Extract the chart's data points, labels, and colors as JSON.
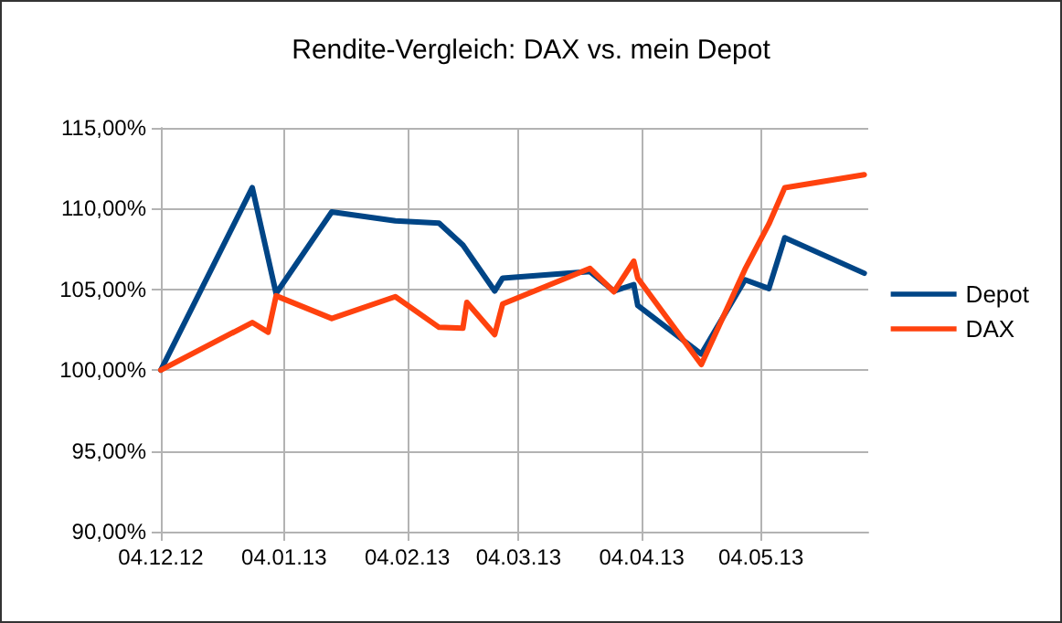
{
  "chart_data": {
    "type": "line",
    "title": "Rendite-Vergleich: DAX vs. mein Depot",
    "series": [
      {
        "name": "Depot",
        "color": "#004586",
        "x": [
          "2012-12-04",
          "2012-12-27",
          "2013-01-02",
          "2013-01-16",
          "2013-02-01",
          "2013-02-12",
          "2013-02-18",
          "2013-02-26",
          "2013-02-28",
          "2013-03-22",
          "2013-03-28",
          "2013-04-02",
          "2013-04-03",
          "2013-04-19",
          "2013-04-30",
          "2013-05-06",
          "2013-05-10",
          "2013-05-30"
        ],
        "values": [
          100,
          111.3,
          104.75,
          109.8,
          109.25,
          109.1,
          107.75,
          104.9,
          105.7,
          106.1,
          104.9,
          105.3,
          104.0,
          101.0,
          105.6,
          105.05,
          108.2,
          106.0
        ]
      },
      {
        "name": "DAX",
        "color": "#ff420e",
        "x": [
          "2012-12-04",
          "2012-12-27",
          "2012-12-31",
          "2013-01-02",
          "2013-01-16",
          "2013-02-01",
          "2013-02-12",
          "2013-02-18",
          "2013-02-19",
          "2013-02-26",
          "2013-02-28",
          "2013-03-22",
          "2013-03-28",
          "2013-04-02",
          "2013-04-03",
          "2013-04-19",
          "2013-04-30",
          "2013-05-06",
          "2013-05-10",
          "2013-05-30"
        ],
        "values": [
          100,
          102.95,
          102.35,
          104.6,
          103.2,
          104.55,
          102.65,
          102.6,
          104.2,
          102.2,
          104.1,
          106.3,
          104.85,
          106.75,
          105.7,
          100.35,
          106.25,
          109.05,
          111.3,
          112.1
        ]
      }
    ],
    "xlim": [
      "2012-12-04",
      "2013-05-31"
    ],
    "xticks": [
      {
        "value": "2012-12-04",
        "label": "04.12.12"
      },
      {
        "value": "2013-01-04",
        "label": "04.01.13"
      },
      {
        "value": "2013-02-04",
        "label": "04.02.13"
      },
      {
        "value": "2013-03-04",
        "label": "04.03.13"
      },
      {
        "value": "2013-04-04",
        "label": "04.04.13"
      },
      {
        "value": "2013-05-04",
        "label": "04.05.13"
      }
    ],
    "ylim": [
      90,
      115
    ],
    "yticks": [
      {
        "value": 90,
        "label": "90,00%"
      },
      {
        "value": 95,
        "label": "95,00%"
      },
      {
        "value": 100,
        "label": "100,00%"
      },
      {
        "value": 105,
        "label": "105,00%"
      },
      {
        "value": 110,
        "label": "110,00%"
      },
      {
        "value": 115,
        "label": "115,00%"
      }
    ],
    "grid": true,
    "legend": "right",
    "marker": "none",
    "line_style": "solid"
  }
}
